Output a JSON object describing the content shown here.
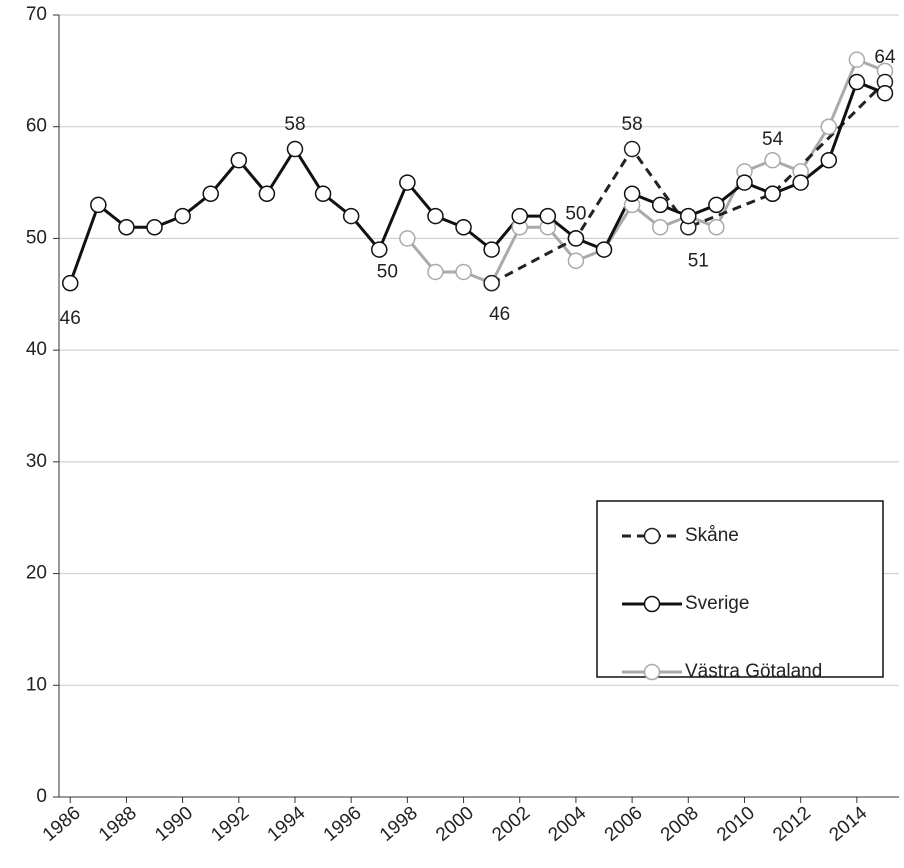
{
  "chart_data": {
    "type": "line",
    "xlim": [
      1985.6,
      2015.5
    ],
    "xticks": [
      1986,
      1988,
      1990,
      1992,
      1994,
      1996,
      1998,
      2000,
      2002,
      2004,
      2006,
      2008,
      2010,
      2012,
      2014
    ],
    "ylim": [
      0,
      70
    ],
    "yticks": [
      0,
      10,
      20,
      30,
      40,
      50,
      60,
      70
    ],
    "grid": true,
    "legend": "lower right",
    "series": [
      {
        "name": "Skåne",
        "color": "#222222",
        "dash": true,
        "x": [
          2001,
          2004,
          2006,
          2008,
          2011,
          2015
        ],
        "values": [
          46,
          50,
          58,
          51,
          54,
          64
        ],
        "value_labels": [
          null,
          "50",
          "58",
          "51",
          "54",
          "64"
        ]
      },
      {
        "name": "Sverige",
        "color": "#111111",
        "dash": false,
        "x": [
          1986,
          1987,
          1988,
          1989,
          1990,
          1991,
          1992,
          1993,
          1994,
          1995,
          1996,
          1997,
          1998,
          1999,
          2000,
          2001,
          2002,
          2003,
          2004,
          2005,
          2006,
          2007,
          2008,
          2009,
          2010,
          2011,
          2012,
          2013,
          2014,
          2015
        ],
        "values": [
          46,
          53,
          51,
          51,
          52,
          54,
          57,
          54,
          58,
          54,
          52,
          49,
          55,
          52,
          51,
          49,
          52,
          52,
          50,
          49,
          54,
          53,
          52,
          53,
          55,
          54,
          55,
          57,
          64,
          63
        ],
        "value_labels": [
          "46",
          null,
          null,
          null,
          null,
          null,
          null,
          null,
          "58",
          null,
          null,
          null,
          null,
          null,
          null,
          null,
          null,
          null,
          null,
          null,
          null,
          null,
          null,
          null,
          null,
          null,
          null,
          null,
          null,
          null
        ]
      },
      {
        "name": "Västra Götaland",
        "color": "#aaaaaa",
        "dash": false,
        "x": [
          1998,
          1999,
          2000,
          2001,
          2002,
          2003,
          2004,
          2005,
          2006,
          2007,
          2008,
          2009,
          2010,
          2011,
          2012,
          2013,
          2014,
          2015
        ],
        "values": [
          50,
          47,
          47,
          46,
          51,
          51,
          48,
          49,
          53,
          51,
          52,
          51,
          56,
          57,
          56,
          60,
          66,
          65
        ],
        "value_labels": [
          "50",
          null,
          null,
          "46",
          null,
          null,
          null,
          null,
          null,
          null,
          null,
          null,
          null,
          null,
          null,
          null,
          null,
          null
        ]
      }
    ]
  }
}
